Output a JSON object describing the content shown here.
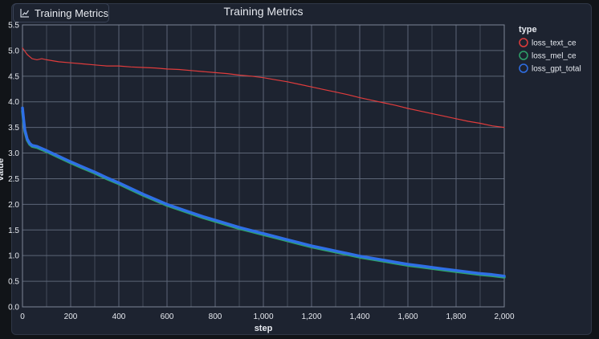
{
  "panel": {
    "tab_label": "Training Metrics",
    "tab_icon": "chart-icon"
  },
  "chart_data": {
    "type": "line",
    "title": "Training Metrics",
    "xlabel": "step",
    "ylabel": "value",
    "xlim": [
      0,
      2000
    ],
    "ylim": [
      0,
      5.5
    ],
    "xticks": [
      0,
      200,
      400,
      600,
      800,
      1000,
      1200,
      1400,
      1600,
      1800,
      2000
    ],
    "xtick_labels": [
      "0",
      "200",
      "400",
      "600",
      "800",
      "1,000",
      "1,200",
      "1,400",
      "1,600",
      "1,800",
      "2,000"
    ],
    "yticks": [
      0,
      0.5,
      1.0,
      1.5,
      2.0,
      2.5,
      3.0,
      3.5,
      4.0,
      4.5,
      5.0,
      5.5
    ],
    "ytick_labels": [
      "0.0",
      "0.5",
      "1.0",
      "1.5",
      "2.0",
      "2.5",
      "3.0",
      "3.5",
      "4.0",
      "4.5",
      "5.0",
      "5.5"
    ],
    "grid": true,
    "legend_title": "type",
    "legend_position": "right",
    "series": [
      {
        "name": "loss_text_ce",
        "color": "#e03c3c",
        "x": [
          0,
          20,
          40,
          60,
          80,
          100,
          150,
          200,
          250,
          300,
          350,
          400,
          450,
          500,
          550,
          600,
          650,
          700,
          750,
          800,
          850,
          900,
          950,
          1000,
          1050,
          1100,
          1150,
          1200,
          1250,
          1300,
          1350,
          1400,
          1450,
          1500,
          1550,
          1600,
          1650,
          1700,
          1750,
          1800,
          1850,
          1900,
          1950,
          2000
        ],
        "y": [
          5.05,
          4.92,
          4.84,
          4.82,
          4.84,
          4.82,
          4.78,
          4.76,
          4.74,
          4.72,
          4.7,
          4.7,
          4.68,
          4.67,
          4.66,
          4.64,
          4.63,
          4.61,
          4.59,
          4.57,
          4.55,
          4.52,
          4.5,
          4.47,
          4.43,
          4.39,
          4.34,
          4.29,
          4.24,
          4.19,
          4.14,
          4.08,
          4.03,
          3.98,
          3.93,
          3.87,
          3.82,
          3.77,
          3.72,
          3.67,
          3.62,
          3.58,
          3.53,
          3.5
        ]
      },
      {
        "name": "loss_mel_ce",
        "color": "#2ea36b",
        "x": [
          0,
          5,
          10,
          20,
          30,
          40,
          60,
          80,
          100,
          150,
          200,
          250,
          300,
          350,
          400,
          450,
          500,
          550,
          600,
          650,
          700,
          750,
          800,
          850,
          900,
          950,
          1000,
          1050,
          1100,
          1150,
          1200,
          1250,
          1300,
          1350,
          1400,
          1450,
          1500,
          1550,
          1600,
          1650,
          1700,
          1750,
          1800,
          1850,
          1900,
          1950,
          2000
        ],
        "y": [
          3.82,
          3.6,
          3.42,
          3.25,
          3.17,
          3.13,
          3.11,
          3.07,
          3.03,
          2.92,
          2.81,
          2.71,
          2.61,
          2.5,
          2.4,
          2.29,
          2.18,
          2.08,
          1.98,
          1.9,
          1.82,
          1.74,
          1.67,
          1.6,
          1.53,
          1.47,
          1.41,
          1.35,
          1.29,
          1.23,
          1.17,
          1.12,
          1.07,
          1.02,
          0.97,
          0.93,
          0.89,
          0.85,
          0.81,
          0.78,
          0.75,
          0.72,
          0.69,
          0.66,
          0.63,
          0.61,
          0.58
        ]
      },
      {
        "name": "loss_gpt_total",
        "color": "#2f6fe6",
        "x": [
          0,
          5,
          10,
          20,
          30,
          40,
          60,
          80,
          100,
          150,
          200,
          250,
          300,
          350,
          400,
          450,
          500,
          550,
          600,
          650,
          700,
          750,
          800,
          850,
          900,
          950,
          1000,
          1050,
          1100,
          1150,
          1200,
          1250,
          1300,
          1350,
          1400,
          1450,
          1500,
          1550,
          1600,
          1650,
          1700,
          1750,
          1800,
          1850,
          1900,
          1950,
          2000
        ],
        "y": [
          3.88,
          3.65,
          3.45,
          3.27,
          3.19,
          3.15,
          3.13,
          3.09,
          3.05,
          2.94,
          2.83,
          2.73,
          2.63,
          2.52,
          2.42,
          2.31,
          2.2,
          2.1,
          2.0,
          1.92,
          1.84,
          1.76,
          1.69,
          1.62,
          1.55,
          1.49,
          1.43,
          1.37,
          1.31,
          1.25,
          1.19,
          1.14,
          1.09,
          1.04,
          0.99,
          0.95,
          0.91,
          0.87,
          0.83,
          0.8,
          0.77,
          0.74,
          0.71,
          0.68,
          0.65,
          0.63,
          0.6
        ]
      }
    ]
  }
}
